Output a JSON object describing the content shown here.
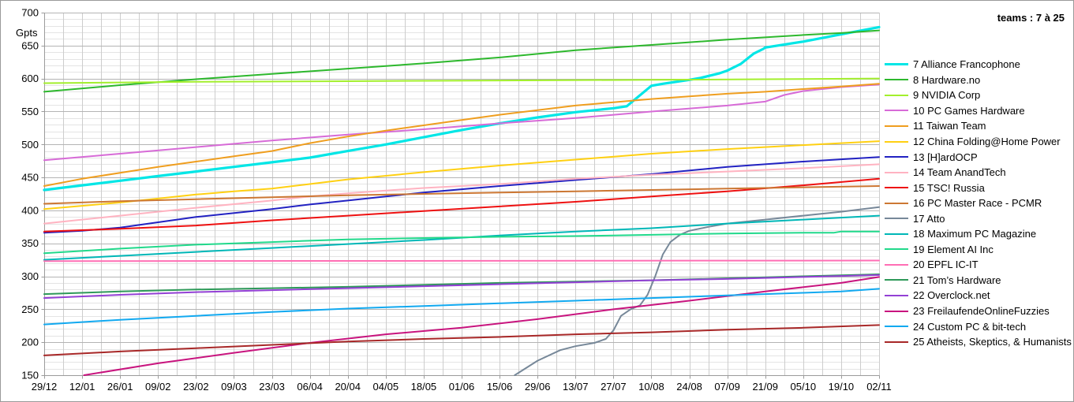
{
  "chart_data": {
    "type": "line",
    "title": "teams : 7 à 25",
    "ylabel": "Gpts",
    "ylim": [
      150,
      700
    ],
    "y_major_step": 50,
    "y_minor_step": 10,
    "grid": true,
    "legend_position": "right",
    "x_tick_labels": [
      "29/12",
      "12/01",
      "26/01",
      "09/02",
      "23/02",
      "09/03",
      "23/03",
      "06/04",
      "20/04",
      "04/05",
      "18/05",
      "01/06",
      "15/06",
      "29/06",
      "13/07",
      "27/07",
      "10/08",
      "24/08",
      "07/09",
      "21/09",
      "05/10",
      "19/10",
      "02/11"
    ],
    "y_tick_labels": [
      "150",
      "200",
      "250",
      "300",
      "350",
      "400",
      "450",
      "500",
      "550",
      "600",
      "650",
      "700"
    ],
    "style": {
      "grid_minor": "#e4e4e4",
      "grid_vertical": "#cdcdcd",
      "grid_major": "#b4b4b4",
      "axis": "#9b9b9b",
      "text": "#000000"
    },
    "series": [
      {
        "rank": 7,
        "name": "Alliance Francophone",
        "color": "#00e6e6",
        "stroke_width": 3.2,
        "points": [
          [
            0,
            431
          ],
          [
            1,
            438
          ],
          [
            2,
            445
          ],
          [
            3,
            452
          ],
          [
            4,
            459
          ],
          [
            5,
            466
          ],
          [
            6,
            473
          ],
          [
            7,
            480
          ],
          [
            8,
            490
          ],
          [
            9,
            500
          ],
          [
            10,
            511
          ],
          [
            11,
            522
          ],
          [
            12,
            532
          ],
          [
            13,
            541
          ],
          [
            14,
            549
          ],
          [
            15,
            555
          ],
          [
            15.35,
            558
          ],
          [
            16,
            589
          ],
          [
            16.3,
            592
          ],
          [
            17,
            598
          ],
          [
            17.3,
            601
          ],
          [
            17.8,
            608
          ],
          [
            18,
            612
          ],
          [
            18.35,
            622
          ],
          [
            18.7,
            638
          ],
          [
            18.95,
            645
          ],
          [
            19,
            647
          ],
          [
            20,
            656
          ],
          [
            21,
            667
          ],
          [
            22,
            678
          ]
        ]
      },
      {
        "rank": 8,
        "name": "Hardware.no",
        "color": "#2db82d",
        "stroke_width": 2,
        "points": [
          [
            0,
            580
          ],
          [
            2,
            590
          ],
          [
            4,
            599
          ],
          [
            6,
            607
          ],
          [
            8,
            615
          ],
          [
            10,
            623
          ],
          [
            12,
            632
          ],
          [
            14,
            643
          ],
          [
            16,
            651
          ],
          [
            18,
            659
          ],
          [
            20,
            666
          ],
          [
            21,
            669
          ],
          [
            22,
            673
          ]
        ]
      },
      {
        "rank": 9,
        "name": "NVIDIA Corp",
        "color": "#a3ef2d",
        "stroke_width": 2,
        "points": [
          [
            0,
            593
          ],
          [
            4,
            595
          ],
          [
            8,
            596
          ],
          [
            12,
            597
          ],
          [
            16,
            598
          ],
          [
            19,
            599
          ],
          [
            22,
            600
          ]
        ]
      },
      {
        "rank": 10,
        "name": "PC Games Hardware",
        "color": "#d76bd7",
        "stroke_width": 2,
        "points": [
          [
            0,
            476
          ],
          [
            2,
            486
          ],
          [
            4,
            496
          ],
          [
            6,
            506
          ],
          [
            8,
            515
          ],
          [
            10,
            523
          ],
          [
            12,
            532
          ],
          [
            14,
            540
          ],
          [
            16,
            550
          ],
          [
            18,
            559
          ],
          [
            19,
            565
          ],
          [
            19.5,
            575
          ],
          [
            20,
            581
          ],
          [
            21,
            587
          ],
          [
            22,
            591
          ]
        ]
      },
      {
        "rank": 11,
        "name": "Taiwan Team",
        "color": "#ef9e1f",
        "stroke_width": 2,
        "points": [
          [
            0,
            437
          ],
          [
            1,
            448
          ],
          [
            2,
            457
          ],
          [
            3,
            466
          ],
          [
            4,
            474
          ],
          [
            5,
            482
          ],
          [
            6,
            490
          ],
          [
            7,
            502
          ],
          [
            8,
            512
          ],
          [
            9,
            521
          ],
          [
            10,
            529
          ],
          [
            11,
            537
          ],
          [
            12,
            545
          ],
          [
            13,
            552
          ],
          [
            14,
            559
          ],
          [
            15,
            564
          ],
          [
            16,
            569
          ],
          [
            17,
            573
          ],
          [
            18,
            577
          ],
          [
            19,
            580
          ],
          [
            20,
            584
          ],
          [
            21,
            588
          ],
          [
            22,
            592
          ]
        ]
      },
      {
        "rank": 12,
        "name": "China Folding@Home Power",
        "color": "#ffd012",
        "stroke_width": 2,
        "points": [
          [
            0,
            402
          ],
          [
            1,
            407
          ],
          [
            2,
            412
          ],
          [
            3,
            418
          ],
          [
            4,
            424
          ],
          [
            5,
            429
          ],
          [
            6,
            433
          ],
          [
            7,
            440
          ],
          [
            8,
            447
          ],
          [
            10,
            458
          ],
          [
            12,
            468
          ],
          [
            14,
            477
          ],
          [
            16,
            486
          ],
          [
            18,
            493
          ],
          [
            20,
            499
          ],
          [
            22,
            505
          ]
        ]
      },
      {
        "rank": 13,
        "name": "[H]ardOCP",
        "color": "#2222c2",
        "stroke_width": 2,
        "points": [
          [
            0,
            366
          ],
          [
            1,
            369
          ],
          [
            2,
            374
          ],
          [
            4,
            390
          ],
          [
            6,
            402
          ],
          [
            7,
            409
          ],
          [
            8,
            415
          ],
          [
            9,
            421
          ],
          [
            10,
            427
          ],
          [
            12,
            437
          ],
          [
            14,
            446
          ],
          [
            16,
            455
          ],
          [
            18,
            466
          ],
          [
            20,
            474
          ],
          [
            22,
            481
          ]
        ]
      },
      {
        "rank": 14,
        "name": "Team AnandTech",
        "color": "#ffb3c1",
        "stroke_width": 2,
        "points": [
          [
            0,
            380
          ],
          [
            2,
            392
          ],
          [
            4,
            404
          ],
          [
            6,
            415
          ],
          [
            7,
            421
          ],
          [
            8,
            426
          ],
          [
            9,
            430
          ],
          [
            10,
            434
          ],
          [
            12,
            440
          ],
          [
            14,
            448
          ],
          [
            16,
            454
          ],
          [
            18,
            459
          ],
          [
            20,
            464
          ],
          [
            22,
            470
          ]
        ]
      },
      {
        "rank": 15,
        "name": "TSC! Russia",
        "color": "#ee1111",
        "stroke_width": 2,
        "points": [
          [
            0,
            368
          ],
          [
            1,
            370
          ],
          [
            2,
            372
          ],
          [
            4,
            377
          ],
          [
            6,
            385
          ],
          [
            8,
            392
          ],
          [
            10,
            399
          ],
          [
            12,
            406
          ],
          [
            14,
            413
          ],
          [
            16,
            421
          ],
          [
            18,
            429
          ],
          [
            20,
            438
          ],
          [
            22,
            448
          ]
        ]
      },
      {
        "rank": 16,
        "name": "PC Master Race - PCMR",
        "color": "#cc7733",
        "stroke_width": 2,
        "points": [
          [
            0,
            410
          ],
          [
            2,
            414
          ],
          [
            4,
            417
          ],
          [
            6,
            420
          ],
          [
            8,
            423
          ],
          [
            10,
            425
          ],
          [
            12,
            427
          ],
          [
            14,
            429
          ],
          [
            16,
            431
          ],
          [
            18,
            433
          ],
          [
            20,
            435
          ],
          [
            22,
            437
          ]
        ]
      },
      {
        "rank": 17,
        "name": "Atto",
        "color": "#778899",
        "stroke_width": 2,
        "points": [
          [
            12.4,
            150
          ],
          [
            13,
            172
          ],
          [
            13.6,
            188
          ],
          [
            14,
            194
          ],
          [
            14.5,
            199
          ],
          [
            14.8,
            205
          ],
          [
            15,
            218
          ],
          [
            15.2,
            240
          ],
          [
            15.45,
            250
          ],
          [
            15.7,
            256
          ],
          [
            15.9,
            272
          ],
          [
            16.1,
            300
          ],
          [
            16.3,
            333
          ],
          [
            16.5,
            352
          ],
          [
            16.75,
            363
          ],
          [
            17,
            369
          ],
          [
            17.5,
            375
          ],
          [
            18,
            380
          ],
          [
            19,
            386
          ],
          [
            20,
            392
          ],
          [
            21,
            398
          ],
          [
            22,
            405
          ]
        ]
      },
      {
        "rank": 18,
        "name": "Maximum PC Magazine",
        "color": "#00b7b7",
        "stroke_width": 2,
        "points": [
          [
            0,
            325
          ],
          [
            2,
            331
          ],
          [
            4,
            337
          ],
          [
            6,
            343
          ],
          [
            8,
            349
          ],
          [
            10,
            355
          ],
          [
            12,
            362
          ],
          [
            14,
            368
          ],
          [
            16,
            373
          ],
          [
            18,
            380
          ],
          [
            19,
            383
          ],
          [
            20,
            386
          ],
          [
            21,
            389
          ],
          [
            22,
            392
          ]
        ]
      },
      {
        "rank": 19,
        "name": "Element AI Inc",
        "color": "#21d98b",
        "stroke_width": 2,
        "points": [
          [
            0,
            335
          ],
          [
            2,
            342
          ],
          [
            4,
            348
          ],
          [
            6,
            352
          ],
          [
            8,
            356
          ],
          [
            10,
            358
          ],
          [
            12,
            360
          ],
          [
            14,
            361
          ],
          [
            16,
            363
          ],
          [
            18,
            365
          ],
          [
            20,
            366
          ],
          [
            20.8,
            366
          ],
          [
            21,
            368
          ],
          [
            22,
            368
          ]
        ]
      },
      {
        "rank": 20,
        "name": "EPFL IC-IT",
        "color": "#ff6eb4",
        "stroke_width": 2,
        "points": [
          [
            0,
            323
          ],
          [
            11,
            323.5
          ],
          [
            22,
            324
          ]
        ]
      },
      {
        "rank": 21,
        "name": "Tom’s Hardware",
        "color": "#2e9959",
        "stroke_width": 2,
        "points": [
          [
            0,
            273
          ],
          [
            2,
            277
          ],
          [
            4,
            280
          ],
          [
            6,
            282
          ],
          [
            8,
            284
          ],
          [
            10,
            287
          ],
          [
            12,
            290
          ],
          [
            14,
            292
          ],
          [
            16,
            294
          ],
          [
            18,
            297
          ],
          [
            20,
            300
          ],
          [
            22,
            303
          ]
        ]
      },
      {
        "rank": 22,
        "name": "Overclock.net",
        "color": "#9340d5",
        "stroke_width": 2,
        "points": [
          [
            0,
            267
          ],
          [
            2,
            272
          ],
          [
            4,
            276
          ],
          [
            6,
            279
          ],
          [
            8,
            282
          ],
          [
            10,
            285
          ],
          [
            12,
            288
          ],
          [
            14,
            291
          ],
          [
            16,
            294
          ],
          [
            18,
            296
          ],
          [
            20,
            299
          ],
          [
            22,
            302
          ]
        ]
      },
      {
        "rank": 23,
        "name": "FreilaufendeOnlineFuzzies",
        "color": "#c8147e",
        "stroke_width": 2,
        "points": [
          [
            1.05,
            150
          ],
          [
            3,
            168
          ],
          [
            5,
            184
          ],
          [
            7,
            199
          ],
          [
            9,
            212
          ],
          [
            11,
            222
          ],
          [
            13,
            235
          ],
          [
            15,
            250
          ],
          [
            17,
            263
          ],
          [
            19,
            277
          ],
          [
            21,
            290
          ],
          [
            22,
            299
          ]
        ]
      },
      {
        "rank": 24,
        "name": "Custom PC & bit-tech",
        "color": "#12a9f0",
        "stroke_width": 2,
        "points": [
          [
            0,
            227
          ],
          [
            2,
            234
          ],
          [
            4,
            240
          ],
          [
            6,
            246
          ],
          [
            8,
            251
          ],
          [
            10,
            255
          ],
          [
            12,
            259
          ],
          [
            14,
            263
          ],
          [
            16,
            267
          ],
          [
            18,
            271
          ],
          [
            20,
            275
          ],
          [
            21,
            277
          ],
          [
            22,
            281
          ]
        ]
      },
      {
        "rank": 25,
        "name": "Atheists, Skeptics, & Humanists",
        "color": "#a82828",
        "stroke_width": 2,
        "points": [
          [
            0,
            180
          ],
          [
            2,
            186
          ],
          [
            4,
            191
          ],
          [
            6,
            196
          ],
          [
            8,
            201
          ],
          [
            10,
            205
          ],
          [
            12,
            208
          ],
          [
            14,
            212
          ],
          [
            16,
            215
          ],
          [
            18,
            219
          ],
          [
            20,
            222
          ],
          [
            22,
            226
          ]
        ]
      }
    ]
  }
}
